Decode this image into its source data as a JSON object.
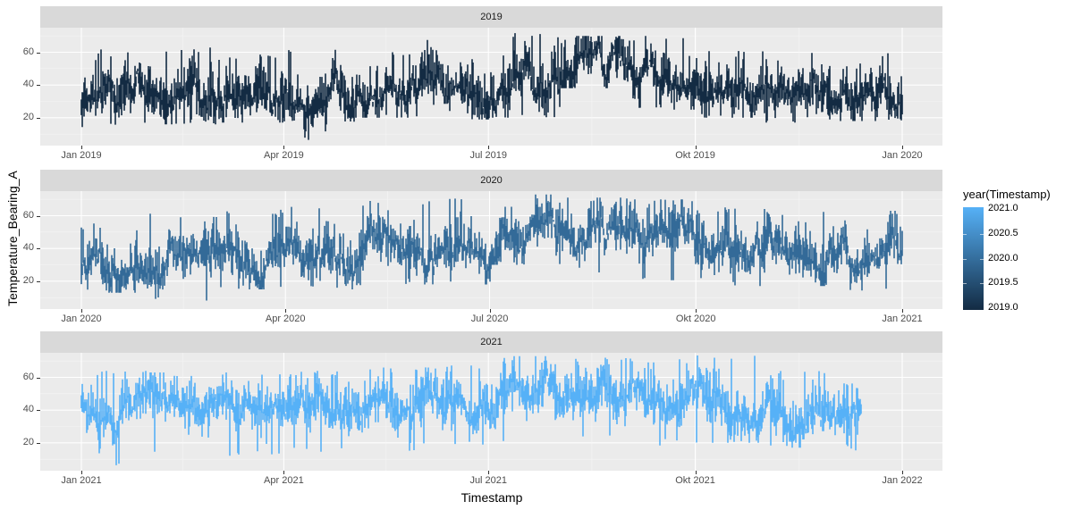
{
  "chart_data": {
    "type": "scatter",
    "title": "",
    "xlabel": "Timestamp",
    "ylabel": "Temperature_Bearing_A",
    "facets": [
      "2019",
      "2020",
      "2021"
    ],
    "y_ticks": [
      20,
      40,
      60
    ],
    "ylim": [
      3,
      75
    ],
    "legend": {
      "title": "year(Timestamp)",
      "position": "right",
      "type": "colorbar",
      "ticks": [
        "2021.0",
        "2020.5",
        "2020.0",
        "2019.5",
        "2019.0"
      ],
      "low_color": "#132b43",
      "high_color": "#56b1f7"
    },
    "panels": [
      {
        "label": "2019",
        "color": "#132b43",
        "x_ticks": [
          "Jan 2019",
          "Apr 2019",
          "Jul 2019",
          "Okt 2019",
          "Jan 2020"
        ],
        "x_tick_pos": [
          0,
          0.2466,
          0.4959,
          0.7479,
          1.0
        ],
        "x_domain_days": [
          -4.5,
          370
        ],
        "data_end_frac": 1.0,
        "monthly_ranges": [
          [
            14,
            62
          ],
          [
            16,
            63
          ],
          [
            17,
            59
          ],
          [
            5,
            62
          ],
          [
            20,
            60
          ],
          [
            19,
            70
          ],
          [
            20,
            72
          ],
          [
            38,
            70
          ],
          [
            25,
            70
          ],
          [
            20,
            63
          ],
          [
            17,
            60
          ],
          [
            18,
            60
          ]
        ],
        "monthly_mean": [
          31,
          35,
          33,
          32,
          36,
          35,
          45,
          52,
          45,
          35,
          32,
          30
        ]
      },
      {
        "label": "2020",
        "color": "#336a98",
        "x_ticks": [
          "Jan 2020",
          "Apr 2020",
          "Jul 2020",
          "Okt 2020",
          "Jan 2021"
        ],
        "x_tick_pos": [
          0,
          0.2486,
          0.4973,
          0.7486,
          1.0
        ],
        "x_domain_days": [
          -4.5,
          371
        ],
        "data_end_frac": 1.0,
        "monthly_ranges": [
          [
            13,
            65
          ],
          [
            8,
            62
          ],
          [
            15,
            64
          ],
          [
            15,
            66
          ],
          [
            17,
            69
          ],
          [
            18,
            71
          ],
          [
            30,
            73
          ],
          [
            23,
            71
          ],
          [
            20,
            70
          ],
          [
            17,
            65
          ],
          [
            17,
            63
          ],
          [
            13,
            63
          ]
        ],
        "monthly_mean": [
          32,
          33,
          34,
          38,
          38,
          40,
          52,
          50,
          46,
          38,
          37,
          36
        ]
      },
      {
        "label": "2021",
        "color": "#56b1f7",
        "x_ticks": [
          "Jan 2021",
          "Apr 2021",
          "Jul 2021",
          "Okt 2021",
          "Jan 2022"
        ],
        "x_tick_pos": [
          0,
          0.2466,
          0.4959,
          0.7479,
          1.0
        ],
        "x_domain_days": [
          -4.5,
          370
        ],
        "data_end_frac": 0.95,
        "monthly_ranges": [
          [
            5,
            64
          ],
          [
            13,
            63
          ],
          [
            12,
            63
          ],
          [
            14,
            64
          ],
          [
            13,
            66
          ],
          [
            17,
            68
          ],
          [
            20,
            73
          ],
          [
            22,
            72
          ],
          [
            18,
            72
          ],
          [
            20,
            74
          ],
          [
            17,
            64
          ],
          [
            15,
            65
          ]
        ],
        "monthly_mean": [
          40,
          42,
          40,
          40,
          42,
          42,
          48,
          50,
          48,
          44,
          40,
          40
        ]
      }
    ]
  },
  "axes": {
    "xlabel": "Timestamp",
    "ylabel": "Temperature_Bearing_A"
  }
}
